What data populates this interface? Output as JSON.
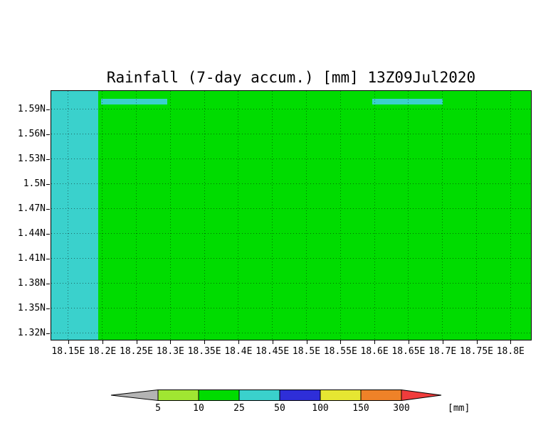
{
  "title": "Rainfall (7-day accum.) [mm] 13Z09Jul2020",
  "chart_data": {
    "type": "heatmap",
    "title": "Rainfall (7-day accum.) [mm] 13Z09Jul2020",
    "grid": true,
    "legend_position": "bottom",
    "x_axis": {
      "tick_labels": [
        "18.15E",
        "18.2E",
        "18.25E",
        "18.3E",
        "18.35E",
        "18.4E",
        "18.45E",
        "18.5E",
        "18.55E",
        "18.6E",
        "18.65E",
        "18.7E",
        "18.75E",
        "18.8E"
      ],
      "tick_values": [
        18.15,
        18.2,
        18.25,
        18.3,
        18.35,
        18.4,
        18.45,
        18.5,
        18.55,
        18.6,
        18.65,
        18.7,
        18.75,
        18.8
      ],
      "range": [
        18.125,
        18.83
      ]
    },
    "y_axis": {
      "tick_labels": [
        "1.59N",
        "1.56N",
        "1.53N",
        "1.5N",
        "1.47N",
        "1.44N",
        "1.41N",
        "1.38N",
        "1.35N",
        "1.32N"
      ],
      "tick_values": [
        1.59,
        1.56,
        1.53,
        1.5,
        1.47,
        1.44,
        1.41,
        1.38,
        1.35,
        1.32
      ],
      "range": [
        1.312,
        1.612
      ]
    },
    "field": {
      "background": {
        "value_mm": "10-25",
        "color": "#00dc00"
      },
      "regions": [
        {
          "name": "west-strip",
          "value_mm": "25-50",
          "color": "#3ad1cc",
          "x": [
            18.125,
            18.194
          ],
          "y": [
            1.312,
            1.612
          ]
        },
        {
          "name": "north-strip-west",
          "value_mm": "25-50",
          "color": "#3ad1cc",
          "x": [
            18.199,
            18.296
          ],
          "y": [
            1.5955,
            1.6025
          ]
        },
        {
          "name": "north-strip-east",
          "value_mm": "25-50",
          "color": "#3ad1cc",
          "x": [
            18.597,
            18.701
          ],
          "y": [
            1.5955,
            1.6025
          ]
        }
      ]
    },
    "colorbar": {
      "boundary_labels": [
        "5",
        "10",
        "25",
        "50",
        "100",
        "150",
        "300"
      ],
      "unit_label": "[mm]",
      "segment_colors": [
        "#b4b4b4",
        "#a0e632",
        "#00dc00",
        "#3ad1cc",
        "#2e2ed8",
        "#e6e632",
        "#ef8228",
        "#f03c3c"
      ]
    }
  },
  "style": {
    "background": "#ffffff",
    "border_color": "#000000",
    "grid_dot_color": "rgba(0,0,0,0.5)"
  }
}
